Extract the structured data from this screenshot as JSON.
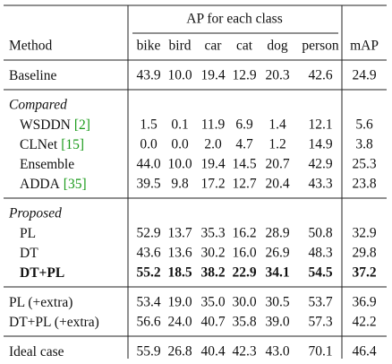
{
  "table": {
    "group_label": "AP for each class",
    "columns": [
      "Method",
      "bike",
      "bird",
      "car",
      "cat",
      "dog",
      "person",
      "mAP"
    ],
    "sections": [
      {
        "rows": [
          {
            "method": "Baseline",
            "values": [
              "43.9",
              "10.0",
              "19.4",
              "12.9",
              "20.3",
              "42.6",
              "24.9"
            ]
          }
        ]
      },
      {
        "title": "Compared",
        "rows": [
          {
            "method": "WSDDN",
            "cite": "[2]",
            "values": [
              "1.5",
              "0.1",
              "11.9",
              "6.9",
              "1.4",
              "12.1",
              "5.6"
            ]
          },
          {
            "method": "CLNet",
            "cite": "[15]",
            "values": [
              "0.0",
              "0.0",
              "2.0",
              "4.7",
              "1.2",
              "14.9",
              "3.8"
            ]
          },
          {
            "method": "Ensemble",
            "values": [
              "44.0",
              "10.0",
              "19.4",
              "14.5",
              "20.7",
              "42.9",
              "25.3"
            ]
          },
          {
            "method": "ADDA",
            "cite": "[35]",
            "values": [
              "39.5",
              "9.8",
              "17.2",
              "12.7",
              "20.4",
              "43.3",
              "23.8"
            ]
          }
        ]
      },
      {
        "title": "Proposed",
        "rows": [
          {
            "method": "PL",
            "values": [
              "52.9",
              "13.7",
              "35.3",
              "16.2",
              "28.9",
              "50.8",
              "32.9"
            ]
          },
          {
            "method": "DT",
            "values": [
              "43.6",
              "13.6",
              "30.2",
              "16.0",
              "26.9",
              "48.3",
              "29.8"
            ]
          },
          {
            "method": "DT+PL",
            "bold": true,
            "values": [
              "55.2",
              "18.5",
              "38.2",
              "22.9",
              "34.1",
              "54.5",
              "37.2"
            ]
          }
        ]
      },
      {
        "rows": [
          {
            "method": "PL (+extra)",
            "values": [
              "53.4",
              "19.0",
              "35.0",
              "30.0",
              "30.5",
              "53.7",
              "36.9"
            ]
          },
          {
            "method": "DT+PL (+extra)",
            "values": [
              "56.6",
              "24.0",
              "40.7",
              "35.8",
              "39.0",
              "57.3",
              "42.2"
            ]
          }
        ]
      },
      {
        "rows": [
          {
            "method": "Ideal case",
            "values": [
              "55.9",
              "26.8",
              "40.4",
              "42.3",
              "43.0",
              "70.1",
              "46.4"
            ]
          }
        ]
      }
    ]
  }
}
